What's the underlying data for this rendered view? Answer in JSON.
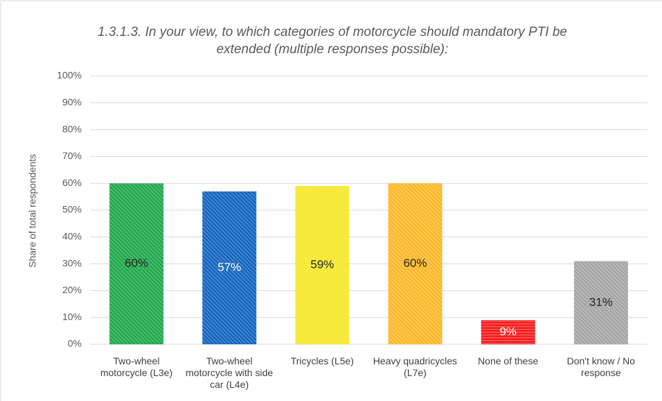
{
  "chart_data": {
    "type": "bar",
    "title": "1.3.1.3. In your view, to which categories of motorcycle should mandatory PTI be extended (multiple responses possible):",
    "y_label": "Share of total respondents",
    "categories": [
      "Two-wheel motorcycle (L3e)",
      "Two-wheel motorcycle with side car (L4e)",
      "Tricycles (L5e)",
      "Heavy quadricycles (L7e)",
      "None of these",
      "Don't know / No response"
    ],
    "values": [
      60,
      57,
      59,
      60,
      9,
      31
    ],
    "value_labels": [
      "60%",
      "57%",
      "59%",
      "60%",
      "9%",
      "31%"
    ],
    "colors": [
      "#22a84c",
      "#1565c0",
      "#f7e82a",
      "#fbb829",
      "#f52020",
      "#a6a6a6"
    ],
    "ylim": [
      0,
      100
    ],
    "yticks": [
      {
        "value": 0,
        "label": "0%"
      },
      {
        "value": 10,
        "label": "10%"
      },
      {
        "value": 20,
        "label": "20%"
      },
      {
        "value": 30,
        "label": "30%"
      },
      {
        "value": 40,
        "label": "40%"
      },
      {
        "value": 50,
        "label": "50%"
      },
      {
        "value": 60,
        "label": "60%"
      },
      {
        "value": 70,
        "label": "70%"
      },
      {
        "value": 80,
        "label": "80%"
      },
      {
        "value": 90,
        "label": "90%"
      },
      {
        "value": 100,
        "label": "100%"
      }
    ],
    "grid": true
  }
}
